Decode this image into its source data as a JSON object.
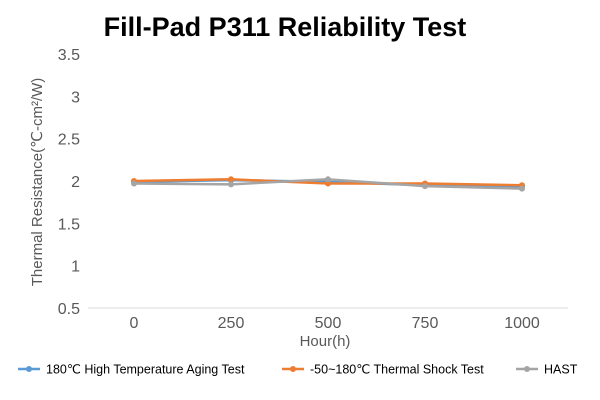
{
  "chart_data": {
    "type": "line",
    "title": "Fill-Pad P311 Reliability Test",
    "xlabel": "Hour(h)",
    "ylabel": "Thermal Resistance(℃-cm²/W)",
    "x": [
      0,
      250,
      500,
      750,
      1000
    ],
    "x_tick_labels": [
      "0",
      "250",
      "500",
      "750",
      "1000"
    ],
    "ylim": [
      0.5,
      3.5
    ],
    "y_ticks": [
      0.5,
      1,
      1.5,
      2,
      2.5,
      3,
      3.5
    ],
    "y_tick_labels": [
      "0.5",
      "1",
      "1.5",
      "2",
      "2.5",
      "3",
      "3.5"
    ],
    "grid": false,
    "legend_position": "bottom",
    "series": [
      {
        "name": "180℃ High Temperature Aging Test",
        "color": "#5B9BD5",
        "values": [
          1.99,
          2.01,
          1.99,
          1.95,
          1.93
        ]
      },
      {
        "name": "-50~180℃ Thermal Shock Test",
        "color": "#ED7D31",
        "values": [
          2.0,
          2.02,
          1.97,
          1.97,
          1.95
        ]
      },
      {
        "name": "HAST",
        "color": "#A5A5A5",
        "values": [
          1.97,
          1.96,
          2.02,
          1.94,
          1.91
        ]
      }
    ]
  }
}
